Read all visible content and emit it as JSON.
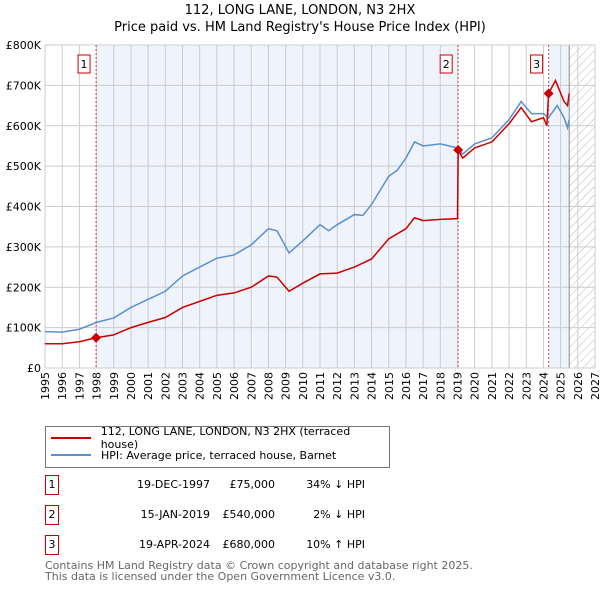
{
  "chart_data": {
    "type": "line",
    "title": "112, LONG LANE, LONDON, N3 2HX",
    "subtitle": "Price paid vs. HM Land Registry's House Price Index (HPI)",
    "xlim": [
      1995,
      2027
    ],
    "ylim": [
      0,
      800000
    ],
    "y_ticks": [
      "£0",
      "£100K",
      "£200K",
      "£300K",
      "£400K",
      "£500K",
      "£600K",
      "£700K",
      "£800K"
    ],
    "x_ticks": [
      "1995",
      "1996",
      "1997",
      "1998",
      "1999",
      "2000",
      "2001",
      "2002",
      "2003",
      "2004",
      "2005",
      "2006",
      "2007",
      "2008",
      "2009",
      "2010",
      "2011",
      "2012",
      "2013",
      "2014",
      "2015",
      "2016",
      "2017",
      "2018",
      "2019",
      "2020",
      "2021",
      "2022",
      "2023",
      "2024",
      "2025",
      "2026",
      "2027"
    ],
    "grid": true,
    "forecast_start": 2025.5,
    "series": [
      {
        "name": "112, LONG LANE, LONDON, N3 2HX (terraced house)",
        "color": "#cc0000",
        "x": [
          1995,
          1996,
          1997,
          1997.97,
          1999,
          2000,
          2001,
          2002,
          2003,
          2004,
          2005,
          2006,
          2007,
          2008,
          2008.5,
          2009.2,
          2010,
          2011,
          2012,
          2013,
          2014,
          2015,
          2016,
          2016.5,
          2017,
          2018,
          2019.0,
          2019.04,
          2019.3,
          2020,
          2021,
          2022,
          2022.7,
          2023.3,
          2024,
          2024.2,
          2024.3,
          2024.7,
          2025.2,
          2025.4,
          2025.5
        ],
        "y": [
          60000,
          60000,
          65000,
          75000,
          82000,
          100000,
          113000,
          125000,
          150000,
          165000,
          180000,
          186000,
          200000,
          228000,
          225000,
          190000,
          210000,
          233000,
          235000,
          250000,
          270000,
          320000,
          345000,
          372000,
          365000,
          368000,
          370000,
          540000,
          520000,
          545000,
          560000,
          605000,
          645000,
          610000,
          620000,
          600000,
          680000,
          712000,
          660000,
          650000,
          680000
        ]
      },
      {
        "name": "HPI: Average price, terraced house, Barnet",
        "color": "#5b8fd0",
        "x": [
          1995,
          1996,
          1997,
          1998,
          1999,
          2000,
          2001,
          2002,
          2003,
          2004,
          2005,
          2006,
          2007,
          2008,
          2008.5,
          2009.2,
          2010,
          2011,
          2011.5,
          2012,
          2013,
          2013.5,
          2014,
          2015,
          2015.5,
          2016,
          2016.5,
          2017,
          2018,
          2019,
          2019.3,
          2020,
          2021,
          2022,
          2022.7,
          2023.3,
          2024,
          2024.3,
          2024.8,
          2025.2,
          2025.4,
          2025.5
        ],
        "y": [
          90000,
          89000,
          96000,
          113000,
          124000,
          150000,
          170000,
          190000,
          228000,
          250000,
          272000,
          280000,
          305000,
          345000,
          340000,
          285000,
          315000,
          355000,
          340000,
          355000,
          380000,
          378000,
          405000,
          475000,
          490000,
          520000,
          560000,
          550000,
          555000,
          545000,
          530000,
          555000,
          570000,
          615000,
          660000,
          630000,
          630000,
          620000,
          650000,
          620000,
          595000,
          615000
        ]
      }
    ],
    "sales": [
      {
        "n": "1",
        "x": 1997.97,
        "date": "19-DEC-1997",
        "price": "£75,000",
        "value": 75000,
        "hpi": "34% ↓ HPI"
      },
      {
        "n": "2",
        "x": 2019.04,
        "date": "15-JAN-2019",
        "price": "£540,000",
        "value": 540000,
        "hpi": "2% ↓ HPI"
      },
      {
        "n": "3",
        "x": 2024.3,
        "date": "19-APR-2024",
        "price": "£680,000",
        "value": 680000,
        "hpi": "10% ↑ HPI"
      }
    ],
    "legend_position": "below"
  },
  "footer": {
    "line1": "Contains HM Land Registry data © Crown copyright and database right 2025.",
    "line2": "This data is licensed under the Open Government Licence v3.0."
  }
}
